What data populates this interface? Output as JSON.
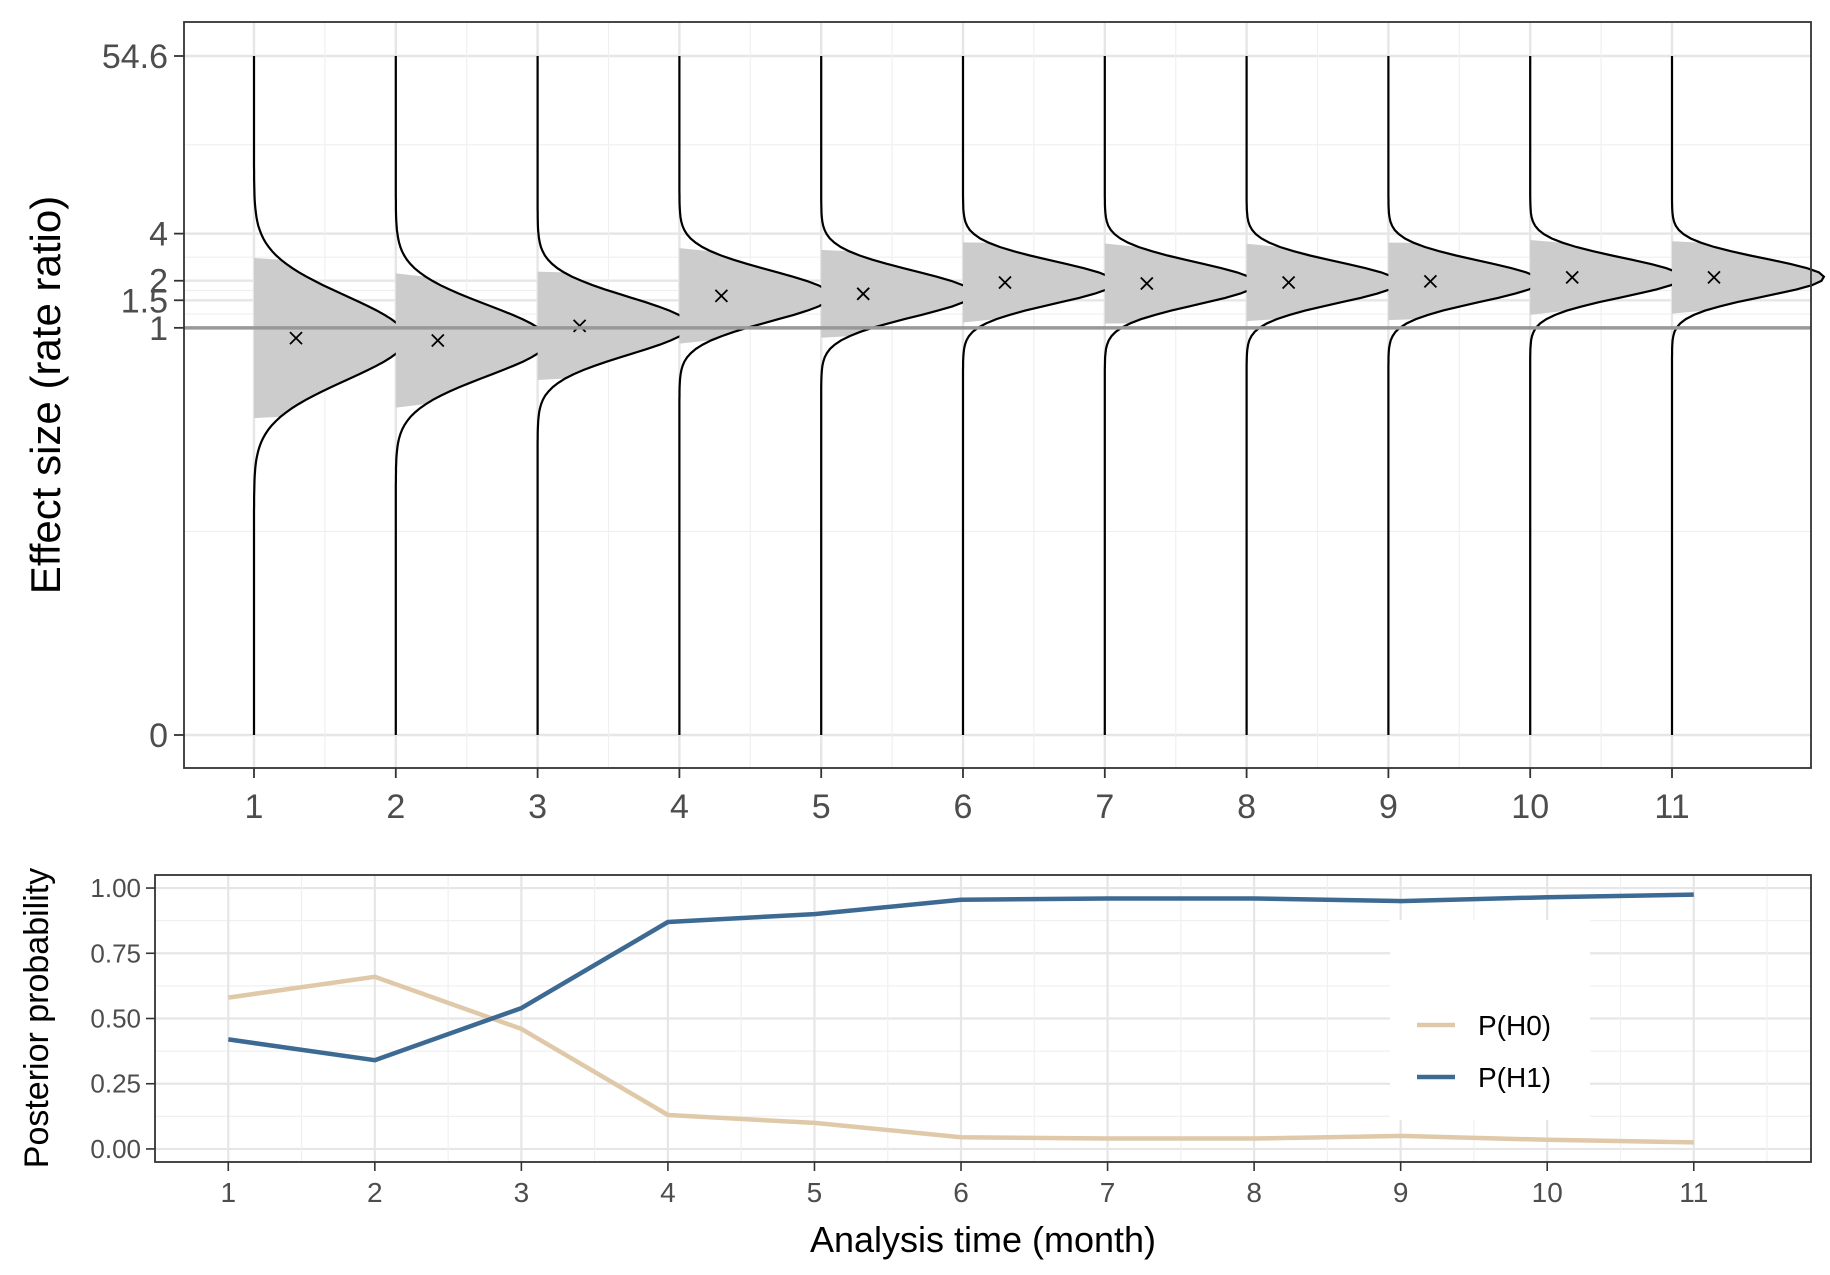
{
  "chart_data": [
    {
      "type": "violin",
      "ylabel": "Effect size (rate ratio)",
      "y_scale": "log",
      "ylim": [
        0.0025,
        54.6
      ],
      "reference_line": 1,
      "y_ticks": [
        {
          "label": "54.6",
          "value": 54.6
        },
        {
          "label": "4",
          "value": 4
        },
        {
          "label": "2",
          "value": 2
        },
        {
          "label": "1.5",
          "value": 1.5
        },
        {
          "label": "1",
          "value": 1
        },
        {
          "label": "0",
          "value": 0.0025
        }
      ],
      "x_ticks": [
        "1",
        "2",
        "3",
        "4",
        "5",
        "6",
        "7",
        "8",
        "9",
        "10",
        "11"
      ],
      "x": [
        1,
        2,
        3,
        4,
        5,
        6,
        7,
        8,
        9,
        10,
        11
      ],
      "posterior_median": [
        0.86,
        0.83,
        1.03,
        1.6,
        1.65,
        1.95,
        1.92,
        1.95,
        1.98,
        2.1,
        2.1
      ],
      "log_sd": [
        0.62,
        0.52,
        0.42,
        0.37,
        0.34,
        0.31,
        0.31,
        0.3,
        0.3,
        0.29,
        0.28
      ],
      "grid": true,
      "fill_color": "#cccccc",
      "outline_color": "#000000",
      "reference_line_color": "#999999"
    },
    {
      "type": "line",
      "xlabel": "Analysis time (month)",
      "ylabel": "Posterior probability",
      "ylim": [
        -0.05,
        1.05
      ],
      "xlim": [
        0.5,
        11.8
      ],
      "y_ticks": [
        "0.00",
        "0.25",
        "0.50",
        "0.75",
        "1.00"
      ],
      "x_ticks": [
        "1",
        "2",
        "3",
        "4",
        "5",
        "6",
        "7",
        "8",
        "9",
        "10",
        "11"
      ],
      "x": [
        1,
        2,
        3,
        4,
        5,
        6,
        7,
        8,
        9,
        10,
        11
      ],
      "series": [
        {
          "name": "P(H0)",
          "color": "#dfc9a9",
          "values": [
            0.58,
            0.66,
            0.46,
            0.13,
            0.1,
            0.045,
            0.04,
            0.04,
            0.05,
            0.035,
            0.025
          ]
        },
        {
          "name": "P(H1)",
          "color": "#3d6a92",
          "values": [
            0.42,
            0.34,
            0.54,
            0.87,
            0.9,
            0.955,
            0.96,
            0.96,
            0.95,
            0.965,
            0.975
          ]
        }
      ],
      "legend_position": "right",
      "grid": true
    }
  ]
}
